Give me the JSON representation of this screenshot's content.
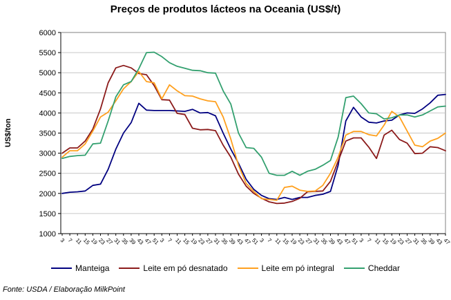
{
  "title": "Preços de produtos lácteos na Oceania (US$/t)",
  "y_axis_title": "US$/ton",
  "source_note": "Fonte: USDA / Elaboração MilkPoint",
  "colors": {
    "manteiga": "#000080",
    "leite_em_po_desnatado": "#8B1A1A",
    "leite_em_po_integral": "#FFA01E",
    "cheddar": "#33A06F",
    "gridline": "#C6C6C6",
    "plot_border": "#808080",
    "axis": "#000000"
  },
  "chart_data": {
    "type": "line",
    "title": "Preços de produtos lácteos na Oceania (US$/t)",
    "ylabel": "US$/ton",
    "xlabel": "",
    "ylim": [
      1000,
      6000
    ],
    "y_ticks": [
      6000,
      5500,
      5000,
      4500,
      4000,
      3500,
      3000,
      2500,
      2000,
      1500,
      1000
    ],
    "grid": true,
    "legend_position": "bottom",
    "x_tick_labels": [
      "3",
      "7",
      "11",
      "15",
      "19",
      "23",
      "27",
      "31",
      "35",
      "39",
      "43",
      "47",
      "51",
      "3",
      "7",
      "11",
      "15",
      "19",
      "23",
      "27",
      "31",
      "35",
      "39",
      "43",
      "47",
      "51",
      "3",
      "7",
      "11",
      "15",
      "19",
      "23",
      "27",
      "31",
      "35",
      "39",
      "43",
      "47",
      "51",
      "3",
      "7",
      "11",
      "15",
      "19",
      "23",
      "27",
      "31",
      "35",
      "39",
      "43",
      "47"
    ],
    "x_unit": "week number, 4 consecutive years, weekly prices",
    "series": [
      {
        "name": "Manteiga",
        "color": "#000080",
        "values": [
          2000,
          2030,
          2040,
          2060,
          2200,
          2230,
          2600,
          3100,
          3500,
          3760,
          4240,
          4070,
          4060,
          4060,
          4060,
          4050,
          4040,
          4090,
          4000,
          4010,
          3930,
          3500,
          3100,
          2750,
          2350,
          2100,
          1950,
          1870,
          1850,
          1900,
          1850,
          1900,
          1900,
          1950,
          1980,
          2050,
          2700,
          3800,
          4140,
          3900,
          3770,
          3750,
          3800,
          3820,
          3950,
          4000,
          3990,
          4100,
          4250,
          4440,
          4460
        ]
      },
      {
        "name": "Leite em pó desnatado",
        "color": "#8B1A1A",
        "values": [
          3000,
          3130,
          3130,
          3300,
          3600,
          4100,
          4750,
          5120,
          5180,
          5120,
          4980,
          4950,
          4680,
          4330,
          4320,
          3990,
          3960,
          3620,
          3580,
          3590,
          3560,
          3200,
          2900,
          2480,
          2180,
          2000,
          1880,
          1790,
          1750,
          1760,
          1800,
          1880,
          2040,
          2050,
          2060,
          2300,
          2800,
          3300,
          3380,
          3380,
          3150,
          2870,
          3450,
          3570,
          3340,
          3250,
          2990,
          3000,
          3160,
          3140,
          3060
        ]
      },
      {
        "name": "Leite em pó integral",
        "color": "#FFA01E",
        "values": [
          2900,
          3060,
          3060,
          3230,
          3550,
          3900,
          4020,
          4300,
          4600,
          4780,
          5030,
          4780,
          4750,
          4350,
          4700,
          4550,
          4430,
          4420,
          4350,
          4300,
          4280,
          3900,
          3350,
          2700,
          2250,
          2050,
          1870,
          1850,
          1830,
          2150,
          2180,
          2080,
          2050,
          2060,
          2200,
          2500,
          2900,
          3450,
          3540,
          3540,
          3460,
          3430,
          3700,
          4040,
          3900,
          3550,
          3200,
          3160,
          3300,
          3370,
          3500
        ]
      },
      {
        "name": "Cheddar",
        "color": "#33A06F",
        "values": [
          2870,
          2920,
          2940,
          2950,
          3230,
          3250,
          3800,
          4400,
          4700,
          4780,
          5100,
          5500,
          5510,
          5400,
          5250,
          5160,
          5110,
          5060,
          5050,
          5000,
          4990,
          4550,
          4220,
          3500,
          3140,
          3120,
          2900,
          2500,
          2450,
          2450,
          2550,
          2450,
          2550,
          2600,
          2700,
          2820,
          3400,
          4380,
          4420,
          4230,
          4000,
          3980,
          3850,
          3880,
          3950,
          3950,
          3900,
          3950,
          4050,
          4150,
          4170
        ]
      }
    ]
  }
}
